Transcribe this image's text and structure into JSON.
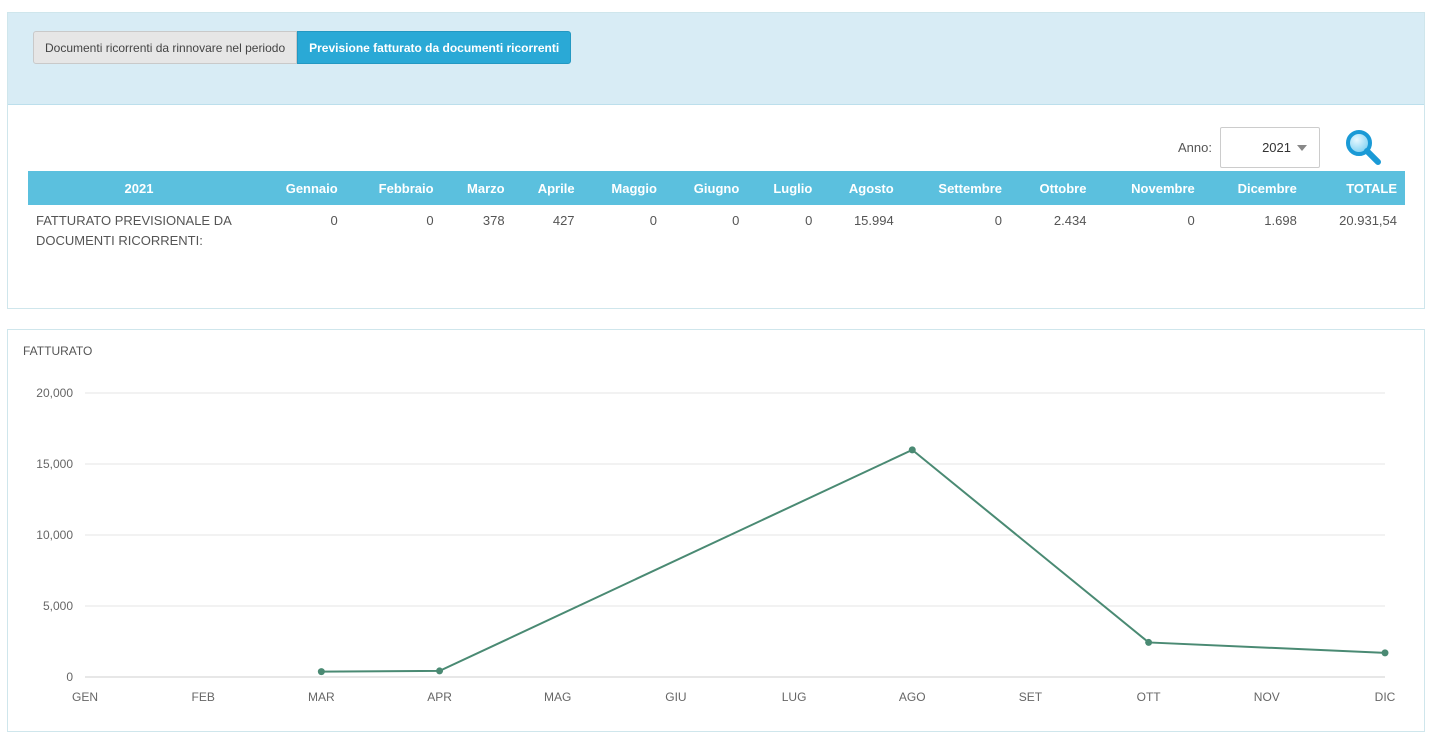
{
  "tabs": {
    "renewals_label": "Documenti ricorrenti da rinnovare nel periodo",
    "forecast_label": "Previsione fatturato da documenti ricorrenti"
  },
  "filter": {
    "year_label": "Anno:",
    "year_value": "2021"
  },
  "table": {
    "headers": [
      "2021",
      "Gennaio",
      "Febbraio",
      "Marzo",
      "Aprile",
      "Maggio",
      "Giugno",
      "Luglio",
      "Agosto",
      "Settembre",
      "Ottobre",
      "Novembre",
      "Dicembre",
      "TOTALE"
    ],
    "row_label": "FATTURATO PREVISIONALE DA DOCUMENTI RICORRENTI:",
    "values": [
      "0",
      "0",
      "378",
      "427",
      "0",
      "0",
      "0",
      "15.994",
      "0",
      "2.434",
      "0",
      "1.698",
      "20.931,54"
    ]
  },
  "chart_data": {
    "type": "line",
    "ylabel": "FATTURATO",
    "x": [
      "GEN",
      "FEB",
      "MAR",
      "APR",
      "MAG",
      "GIU",
      "LUG",
      "AGO",
      "SET",
      "OTT",
      "NOV",
      "DIC"
    ],
    "series": [
      {
        "values": [
          null,
          null,
          378,
          427,
          null,
          null,
          null,
          15994,
          null,
          2434,
          null,
          1698
        ]
      }
    ],
    "ylim": [
      0,
      20000
    ],
    "yticks": [
      0,
      5000,
      10000,
      15000,
      20000
    ],
    "ytick_labels": [
      "0",
      "5,000",
      "10,000",
      "15,000",
      "20,000"
    ],
    "grid": true,
    "line_color": "#4a8a73"
  }
}
